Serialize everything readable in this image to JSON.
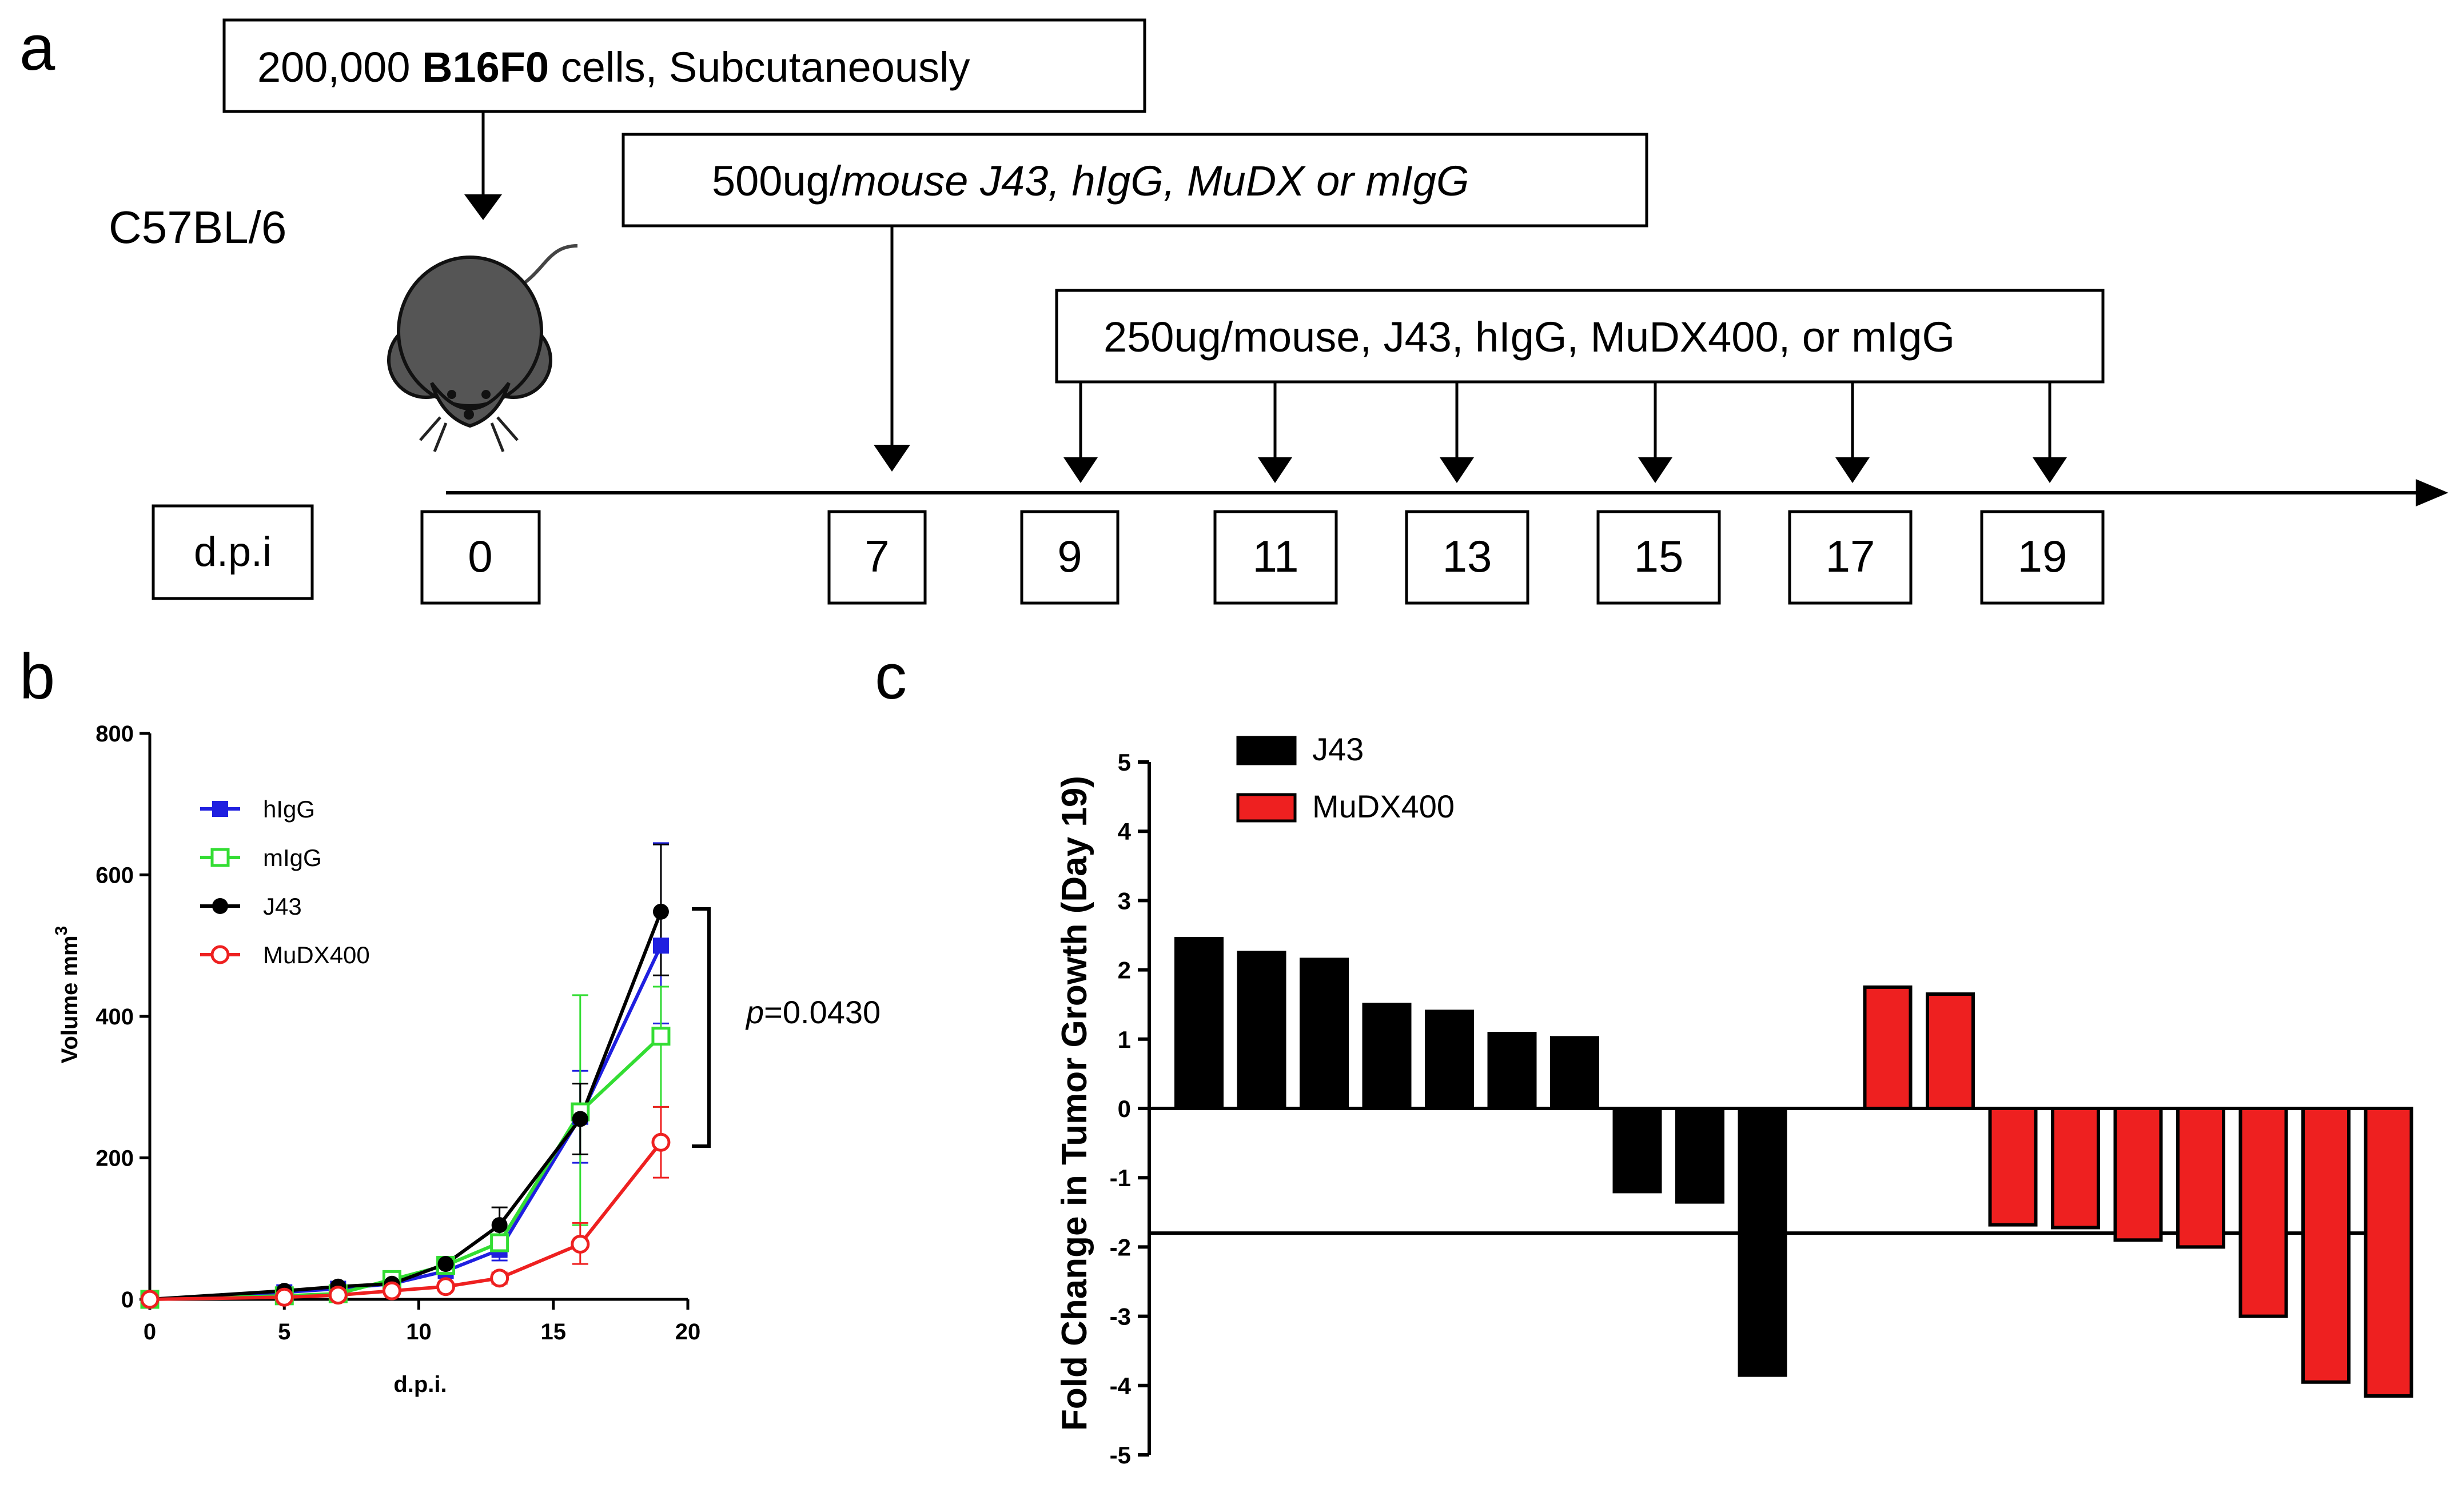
{
  "panels": {
    "a": "a",
    "b": "b",
    "c": "c"
  },
  "timeline": {
    "strain": "C57BL/6",
    "injection": {
      "pre": "200,000 ",
      "bold": "B16F0",
      "post": " cells, Subcutaneously"
    },
    "first_dose": {
      "pre": "500ug/",
      "italic": "mouse J43, hIgG, MuDX or mIgG"
    },
    "repeat_dose": "250ug/mouse, J43, hIgG, MuDX400, or mIgG",
    "axis_label": "d.p.i",
    "days": [
      "0",
      "7",
      "9",
      "11",
      "13",
      "15",
      "17",
      "19"
    ]
  },
  "colors": {
    "hIgG": "#1f1fe0",
    "mIgG": "#33dd33",
    "J43": "#000000",
    "MuDX400": "#ee2020",
    "mouse": "#555555"
  },
  "chart_data": [
    {
      "type": "line",
      "xlabel": "d.p.i.",
      "ylabel": "Volume mm",
      "ylabel_sup": "3",
      "xlim": [
        0,
        20
      ],
      "ylim": [
        0,
        800
      ],
      "xticks": [
        0,
        5,
        10,
        15,
        20
      ],
      "yticks": [
        0,
        200,
        400,
        600,
        800
      ],
      "annotation": {
        "prefix": "p",
        "text": "=0.0430"
      },
      "series": [
        {
          "name": "hIgG",
          "marker": "filled-square",
          "x": [
            0,
            5,
            7,
            9,
            11,
            13,
            16,
            19
          ],
          "y": [
            0,
            10,
            15,
            22,
            40,
            70,
            258,
            500
          ],
          "err_plus": [
            0,
            3,
            4,
            6,
            8,
            15,
            65,
            145
          ],
          "err_minus": [
            0,
            3,
            4,
            6,
            8,
            15,
            65,
            110
          ]
        },
        {
          "name": "mIgG",
          "marker": "open-square",
          "x": [
            0,
            5,
            7,
            9,
            11,
            13,
            16,
            19
          ],
          "y": [
            0,
            5,
            8,
            28,
            48,
            80,
            265,
            372
          ],
          "err_plus": [
            0,
            4,
            5,
            8,
            10,
            18,
            165,
            70
          ],
          "err_minus": [
            0,
            4,
            5,
            8,
            10,
            18,
            160,
            100
          ]
        },
        {
          "name": "J43",
          "marker": "filled-circle",
          "x": [
            0,
            5,
            7,
            9,
            11,
            13,
            16,
            19
          ],
          "y": [
            0,
            12,
            18,
            22,
            50,
            105,
            255,
            548
          ],
          "err_plus": [
            0,
            3,
            4,
            6,
            10,
            25,
            50,
            95
          ],
          "err_minus": [
            0,
            3,
            4,
            6,
            10,
            25,
            50,
            90
          ]
        },
        {
          "name": "MuDX400",
          "marker": "open-circle",
          "x": [
            0,
            5,
            7,
            9,
            11,
            13,
            16,
            19
          ],
          "y": [
            0,
            3,
            6,
            12,
            18,
            30,
            78,
            222
          ],
          "err_plus": [
            0,
            2,
            3,
            4,
            5,
            8,
            30,
            50
          ],
          "err_minus": [
            0,
            2,
            3,
            4,
            5,
            8,
            28,
            50
          ]
        }
      ]
    },
    {
      "type": "bar",
      "ylabel": "Fold Change in Tumor Growth (Day 19)",
      "ylim": [
        -5,
        5
      ],
      "yticks": [
        5,
        4,
        3,
        2,
        1,
        0,
        -1,
        -2,
        -3,
        -4,
        -5
      ],
      "threshold": -1.8,
      "series": [
        {
          "name": "J43",
          "values": [
            2.45,
            2.25,
            2.15,
            1.5,
            1.4,
            1.08,
            1.02,
            -1.2,
            -1.35,
            -3.85
          ]
        },
        {
          "name": "MuDX400",
          "values": [
            1.75,
            1.65,
            -1.68,
            -1.72,
            -1.9,
            -2.0,
            -3.0,
            -3.95,
            -4.15
          ]
        }
      ]
    }
  ]
}
